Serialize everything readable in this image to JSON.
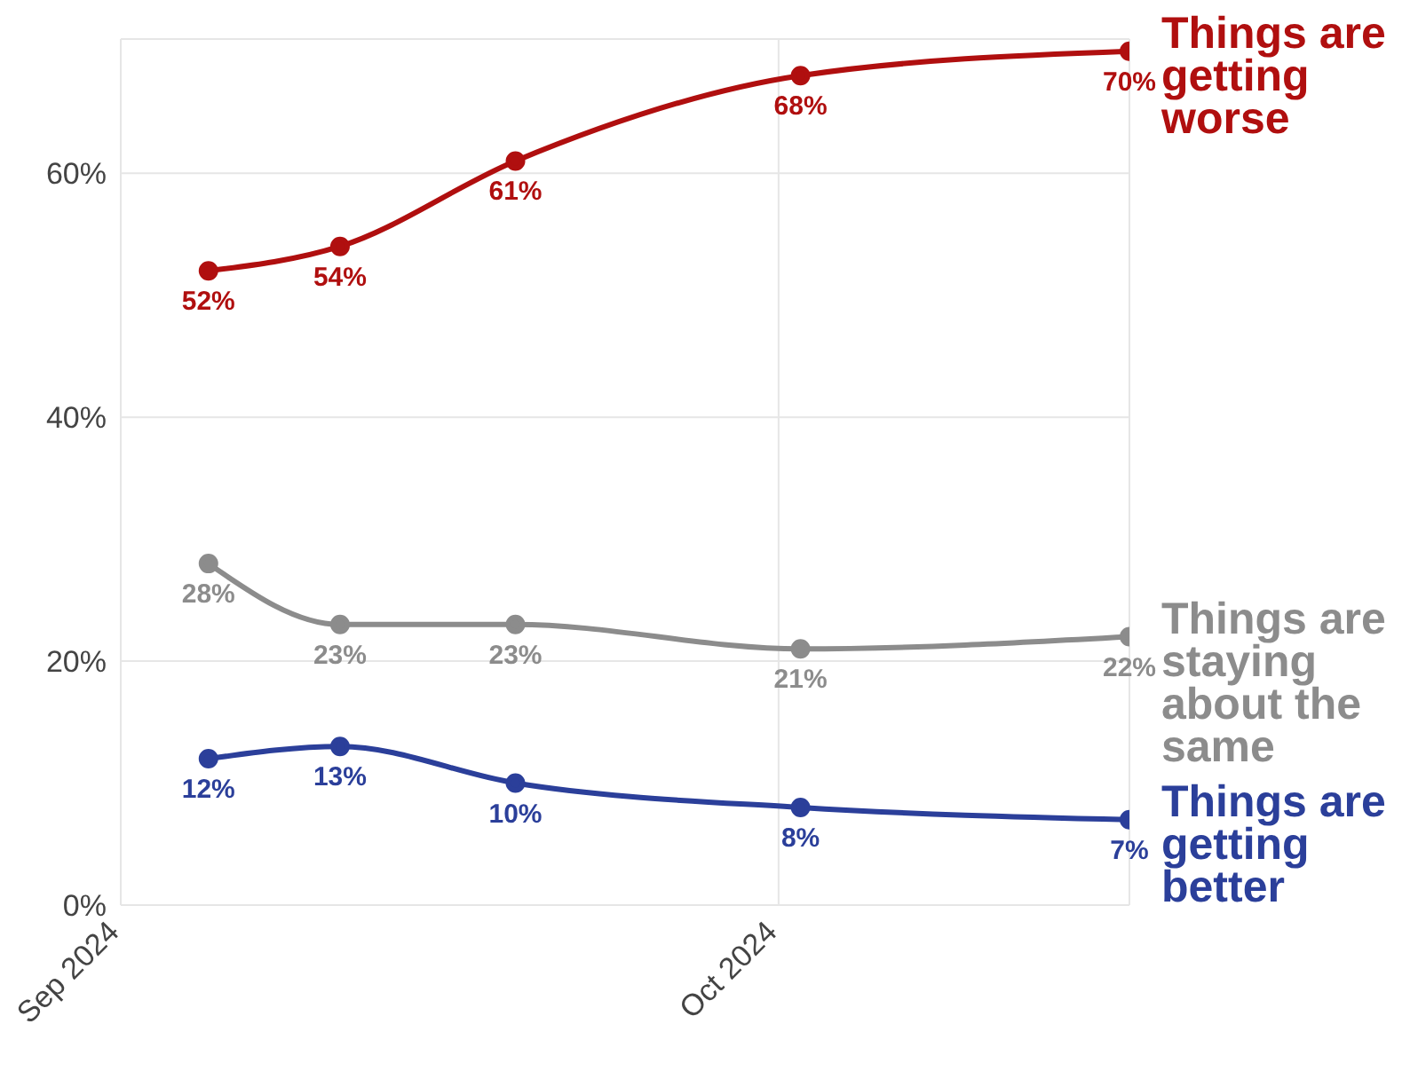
{
  "chart_data": {
    "type": "line",
    "x": [
      "2024-09-05",
      "2024-09-11",
      "2024-09-19",
      "2024-10-02",
      "2024-10-17"
    ],
    "series": [
      {
        "name": "Things are getting worse",
        "color": "#b00f0f",
        "values": [
          52,
          54,
          61,
          68,
          70
        ],
        "value_labels": [
          "52%",
          "54%",
          "61%",
          "68%",
          "70%"
        ]
      },
      {
        "name": "Things are staying about the same",
        "color": "#8c8c8c",
        "values": [
          28,
          23,
          23,
          21,
          22
        ],
        "value_labels": [
          "28%",
          "23%",
          "23%",
          "21%",
          "22%"
        ]
      },
      {
        "name": "Things are getting better",
        "color": "#2b3f9a",
        "values": [
          12,
          13,
          10,
          8,
          7
        ],
        "value_labels": [
          "12%",
          "13%",
          "10%",
          "8%",
          "7%"
        ]
      }
    ],
    "xlim": [
      "2024-09-01",
      "2024-10-17"
    ],
    "xticks": [
      {
        "value": "2024-09-01",
        "label": "Sep 2024"
      },
      {
        "value": "2024-10-01",
        "label": "Oct 2024"
      }
    ],
    "ylim": [
      0,
      71
    ],
    "yticks": [
      {
        "value": 0,
        "label": "0%"
      },
      {
        "value": 20,
        "label": "20%"
      },
      {
        "value": 40,
        "label": "40%"
      },
      {
        "value": 60,
        "label": "60%"
      }
    ],
    "grid": true,
    "marker": "circle",
    "line_style": "solid"
  }
}
